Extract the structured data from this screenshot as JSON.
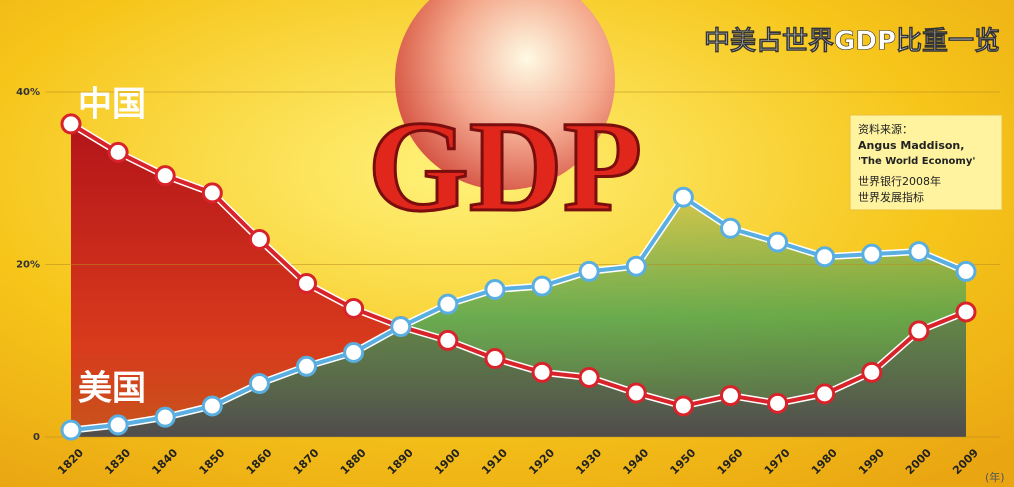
{
  "chart_data": {
    "type": "line",
    "title": "中美占世界GDP比重一览",
    "graphic_text": "GDP",
    "source_lines": [
      "资料来源：",
      "Angus Maddison,",
      "'The World Economy'",
      "世界银行2008年",
      "世界发展指标"
    ],
    "x_unit": "(年)",
    "categories": [
      "1820",
      "1830",
      "1840",
      "1850",
      "1860",
      "1870",
      "1880",
      "1890",
      "1900",
      "1910",
      "1920",
      "1930",
      "1940",
      "1950",
      "1960",
      "1970",
      "1980",
      "1990",
      "2000",
      "2009"
    ],
    "series": [
      {
        "name": "中国",
        "color": "#d8232a",
        "values": [
          36.3,
          33.0,
          30.3,
          28.3,
          22.9,
          17.8,
          14.9,
          12.8,
          11.2,
          9.1,
          7.5,
          6.9,
          5.1,
          3.6,
          4.8,
          3.9,
          5.0,
          7.5,
          12.3,
          14.5
        ]
      },
      {
        "name": "美国",
        "color": "#5aaee0",
        "values": [
          0.8,
          1.4,
          2.3,
          3.6,
          6.2,
          8.2,
          9.8,
          12.8,
          15.4,
          17.1,
          17.5,
          19.2,
          19.8,
          27.8,
          24.2,
          22.6,
          20.9,
          21.2,
          21.5,
          19.2
        ]
      }
    ],
    "ylim": [
      0,
      40
    ],
    "yticks": [
      0,
      {
        "value": 20,
        "label": "20%"
      },
      {
        "value": 40,
        "label": "40%"
      }
    ],
    "grid": true
  }
}
